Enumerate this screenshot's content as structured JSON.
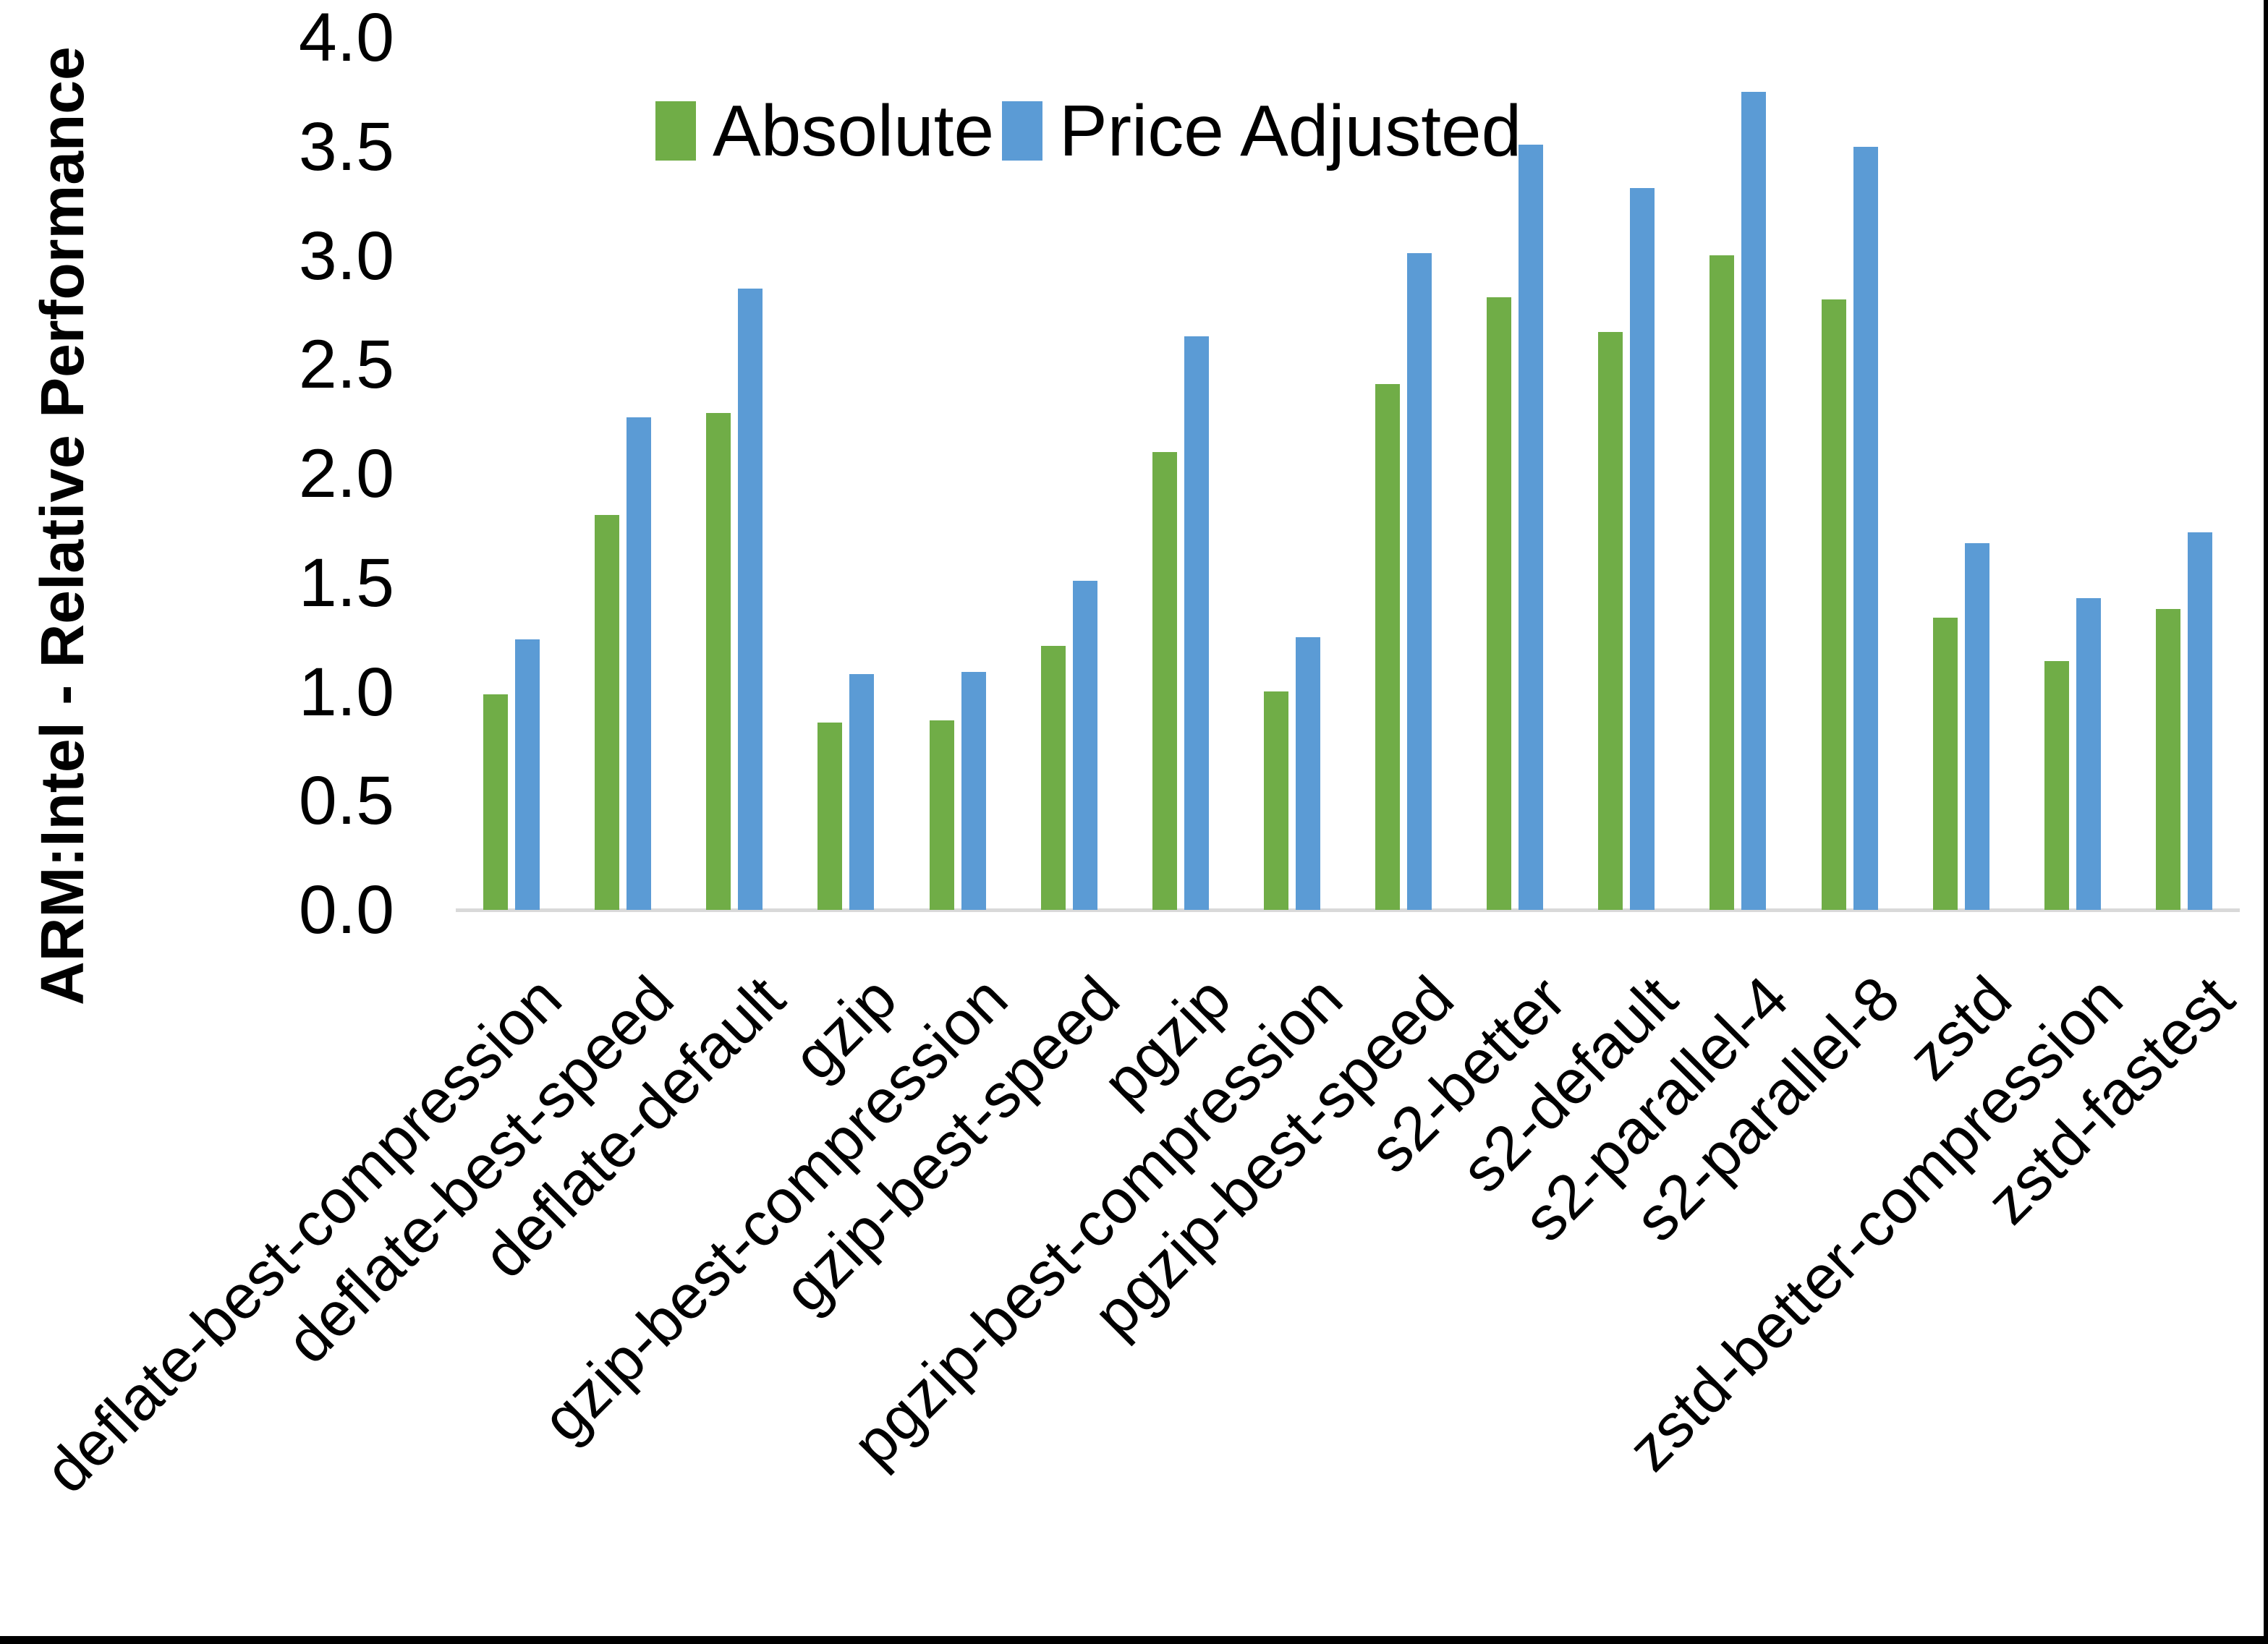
{
  "page": {
    "background": "#ffffff",
    "frame_edge_color": "#000000"
  },
  "chart_data": {
    "type": "bar",
    "title": "",
    "xlabel": "",
    "ylabel": "ARM:Intel - Relative Performance",
    "ylim": [
      0.0,
      4.0
    ],
    "ytick_step": 0.5,
    "ytick_labels": [
      "0.0",
      "0.5",
      "1.0",
      "1.5",
      "2.0",
      "2.5",
      "3.0",
      "3.5",
      "4.0"
    ],
    "grid": false,
    "legend_position": "top-center",
    "axis_line_color": "#d9d9d9",
    "text_color": "#000000",
    "categories": [
      "deflate-best-compression",
      "deflate-best-speed",
      "deflate-default",
      "gzip",
      "gzip-best-compression",
      "gzip-best-speed",
      "pgzip",
      "pgzip-best-compression",
      "pgzip-best-speed",
      "s2-better",
      "s2-default",
      "s2-parallel-4",
      "s2-parallel-8",
      "zstd",
      "zstd-better-compression",
      "zstd-fastest"
    ],
    "series": [
      {
        "name": "Absolute",
        "color": "#70ad47",
        "values": [
          0.99,
          1.81,
          2.28,
          0.86,
          0.87,
          1.21,
          2.1,
          1.0,
          2.41,
          2.81,
          2.65,
          3.0,
          2.8,
          1.34,
          1.14,
          1.38
        ]
      },
      {
        "name": "Price Adjusted",
        "color": "#5b9bd5",
        "values": [
          1.24,
          2.26,
          2.85,
          1.08,
          1.09,
          1.51,
          2.63,
          1.25,
          3.01,
          3.51,
          3.31,
          3.75,
          3.5,
          1.68,
          1.43,
          1.73
        ]
      }
    ]
  }
}
